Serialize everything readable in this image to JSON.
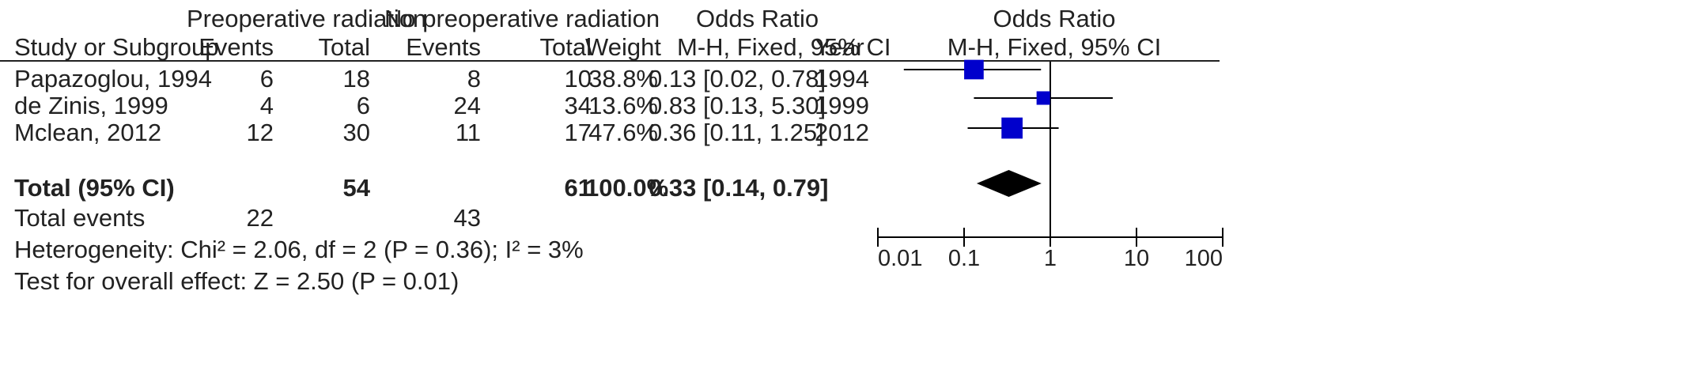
{
  "headers": {
    "group1": "Preoperative radiation",
    "group2": "No preoperative radiation",
    "or_table": "Odds Ratio",
    "or_plot": "Odds Ratio",
    "study": "Study or Subgroup",
    "events1": "Events",
    "total1": "Total",
    "events2": "Events",
    "total2": "Total",
    "weight": "Weight",
    "method": "M-H, Fixed, 95% CI",
    "year": "Year",
    "method_plot": "M-H, Fixed, 95% CI"
  },
  "studies": [
    {
      "name": "Papazoglou, 1994",
      "events1": "6",
      "total1": "18",
      "events2": "8",
      "total2": "10",
      "weight": "38.8%",
      "ci": "0.13 [0.02, 0.78]",
      "year": "1994"
    },
    {
      "name": "de Zinis, 1999",
      "events1": "4",
      "total1": "6",
      "events2": "24",
      "total2": "34",
      "weight": "13.6%",
      "ci": "0.83 [0.13, 5.30]",
      "year": "1999"
    },
    {
      "name": "Mclean, 2012",
      "events1": "12",
      "total1": "30",
      "events2": "11",
      "total2": "17",
      "weight": "47.6%",
      "ci": "0.36 [0.11, 1.25]",
      "year": "2012"
    }
  ],
  "total": {
    "label": "Total (95% CI)",
    "total1": "54",
    "total2": "61",
    "weight": "100.0%",
    "ci": "0.33 [0.14, 0.79]"
  },
  "total_events": {
    "label": "Total events",
    "events1": "22",
    "events2": "43"
  },
  "footer": {
    "heterogeneity": "Heterogeneity: Chi² = 2.06, df = 2 (P = 0.36); I² = 3%",
    "overall_effect": "Test for overall effect: Z = 2.50 (P = 0.01)"
  },
  "chart_data": {
    "type": "forest",
    "scale": "log",
    "xlim": [
      0.01,
      100
    ],
    "ticks": [
      0.01,
      0.1,
      1,
      10,
      100
    ],
    "tick_labels": [
      "0.01",
      "0.1",
      "1",
      "10",
      "100"
    ],
    "null_line": 1,
    "studies": [
      {
        "name": "Papazoglou, 1994",
        "or": 0.13,
        "lower": 0.02,
        "upper": 0.78,
        "weight": 38.8
      },
      {
        "name": "de Zinis, 1999",
        "or": 0.83,
        "lower": 0.13,
        "upper": 5.3,
        "weight": 13.6
      },
      {
        "name": "Mclean, 2012",
        "or": 0.36,
        "lower": 0.11,
        "upper": 1.25,
        "weight": 47.6
      }
    ],
    "pooled": {
      "or": 0.33,
      "lower": 0.14,
      "upper": 0.79
    },
    "colors": {
      "marker": "#0000cc",
      "diamond": "#000000",
      "line": "#000000"
    }
  }
}
